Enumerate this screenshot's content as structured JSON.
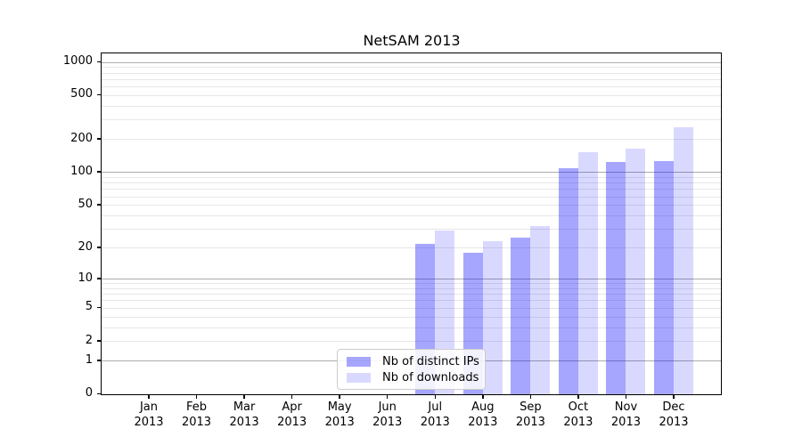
{
  "figure": {
    "title": "NetSAM 2013",
    "background_color": "#ffffff"
  },
  "chart_data": {
    "type": "bar",
    "title": "NetSAM 2013",
    "xlabel": "",
    "ylabel": "",
    "categories": [
      "Jan",
      "Feb",
      "Mar",
      "Apr",
      "May",
      "Jun",
      "Jul",
      "Aug",
      "Sep",
      "Oct",
      "Nov",
      "Dec"
    ],
    "category_year": "2013",
    "series": [
      {
        "name": "Nb of distinct IPs",
        "color": "rgba(0,0,255,0.35)",
        "values": [
          0,
          0,
          0,
          0,
          0,
          0,
          22,
          18,
          25,
          109,
          125,
          127
        ]
      },
      {
        "name": "Nb of downloads",
        "color": "rgba(0,0,255,0.15)",
        "values": [
          0,
          0,
          0,
          0,
          0,
          0,
          29,
          23,
          32,
          152,
          164,
          258
        ]
      }
    ],
    "yscale": "log1p",
    "ylim": [
      0,
      1205
    ],
    "yticks": [
      0,
      1,
      2,
      5,
      10,
      20,
      50,
      100,
      200,
      500,
      1000
    ],
    "grid": {
      "show": true,
      "orientation": "horizontal",
      "major_lines": [
        1,
        10,
        100,
        1000
      ],
      "major_color": "#ababab",
      "minor_color": "#e7e7e7"
    },
    "legend": {
      "position": "lower-center-inside",
      "entries": [
        "Nb of distinct IPs",
        "Nb of downloads"
      ]
    },
    "axis_color": "#000000",
    "text_color": "#000000"
  }
}
